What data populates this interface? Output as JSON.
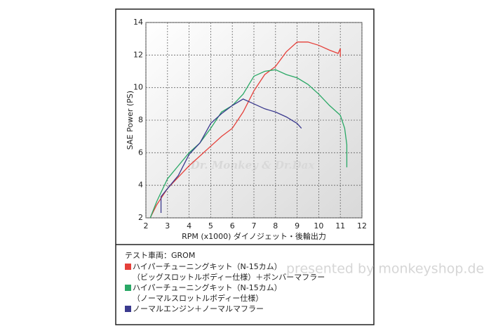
{
  "chart_data": {
    "type": "line",
    "y_label": "SAE Power (PS)",
    "x_label": "RPM (x1000) ダイノジェット・後輪出力",
    "watermark": "Dr. Monkey & Dr.Dax",
    "credit": "presented by monkeyshop.de",
    "legend_heading": "テスト車両：GROM",
    "xlim": [
      2,
      12
    ],
    "xticks": [
      2,
      3,
      4,
      5,
      6,
      7,
      8,
      9,
      10,
      11,
      12
    ],
    "ylim": [
      2,
      14
    ],
    "yticks": [
      2,
      4,
      6,
      8,
      10,
      12,
      14
    ],
    "grid": true,
    "series": [
      {
        "name": "ハイパーチューニングキット（N-15カム）",
        "note": "（ビッグスロットルボディー仕様）＋ボンバーマフラー",
        "color": "#e5403a",
        "x": [
          2.2,
          2.5,
          3,
          3.5,
          4,
          4.5,
          5,
          5.5,
          6,
          6.5,
          7,
          7.5,
          8,
          8.5,
          9,
          9.5,
          10,
          10.5,
          10.9,
          11,
          11
        ],
        "values": [
          2.0,
          2.8,
          3.8,
          4.5,
          5.2,
          5.8,
          6.4,
          7.0,
          7.5,
          8.5,
          9.8,
          10.8,
          11.3,
          12.2,
          12.8,
          12.8,
          12.6,
          12.3,
          12.1,
          12.4,
          11.9
        ]
      },
      {
        "name": "ハイパーチューニングキット（N-15カム）",
        "note": "（ノーマルスロットルボディー仕様）",
        "color": "#2aa866",
        "x": [
          2.2,
          2.5,
          3,
          3.5,
          4,
          4.5,
          5,
          5.5,
          6,
          6.5,
          7,
          7.5,
          8,
          8.5,
          9,
          9.5,
          10,
          10.5,
          11,
          11.2,
          11.3,
          11.3
        ],
        "values": [
          2.0,
          3.0,
          4.4,
          5.2,
          6.0,
          6.6,
          7.5,
          8.5,
          8.9,
          9.6,
          10.7,
          11.0,
          11.1,
          10.8,
          10.6,
          10.2,
          9.6,
          8.9,
          8.3,
          7.5,
          6.5,
          5.1
        ]
      },
      {
        "name": "ノーマルエンジン＋ノーマルマフラー",
        "color": "#3b3a8e",
        "x": [
          2.7,
          2.7,
          3,
          3.5,
          4,
          4.5,
          5,
          5.5,
          6,
          6.5,
          7,
          7.5,
          8,
          8.5,
          9,
          9.2
        ],
        "values": [
          2.3,
          3.3,
          3.8,
          4.6,
          5.9,
          6.6,
          7.8,
          8.4,
          8.9,
          9.3,
          9.0,
          8.7,
          8.5,
          8.2,
          7.8,
          7.5
        ]
      }
    ]
  }
}
